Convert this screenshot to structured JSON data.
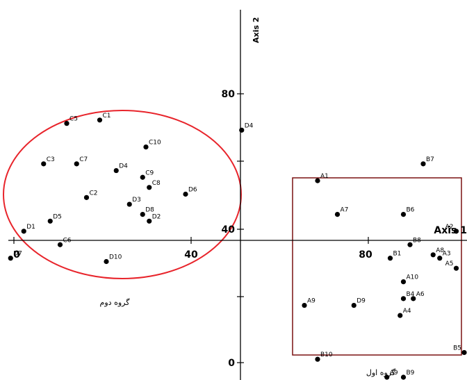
{
  "chart_data": {
    "type": "scatter",
    "title": "",
    "xlabel": "Axis 1",
    "ylabel": "Axis 2",
    "x_ticks": [
      "0",
      "40",
      "80"
    ],
    "y_ticks": [
      "0",
      "40",
      "80"
    ],
    "xlim": [
      -1,
      132
    ],
    "ylim": [
      -4,
      131
    ],
    "grid": false,
    "group_labels": [
      "گروه دوم",
      "گروه اول"
    ],
    "points": [
      {
        "label": "C1",
        "x": 26,
        "y": 72
      },
      {
        "label": "C5",
        "x": 16,
        "y": 71
      },
      {
        "label": "C10",
        "x": 40,
        "y": 64
      },
      {
        "label": "C3",
        "x": 9,
        "y": 59
      },
      {
        "label": "C7",
        "x": 19,
        "y": 59
      },
      {
        "label": "D4",
        "x": 31,
        "y": 57
      },
      {
        "label": "C9",
        "x": 39,
        "y": 55
      },
      {
        "label": "C8",
        "x": 41,
        "y": 52
      },
      {
        "label": "C2",
        "x": 22,
        "y": 49
      },
      {
        "label": "D6",
        "x": 52,
        "y": 50
      },
      {
        "label": "D3",
        "x": 35,
        "y": 47
      },
      {
        "label": "D8",
        "x": 39,
        "y": 44
      },
      {
        "label": "D2",
        "x": 41,
        "y": 42
      },
      {
        "label": "D5",
        "x": 11,
        "y": 42
      },
      {
        "label": "D1",
        "x": 3,
        "y": 39
      },
      {
        "label": "C6",
        "x": 14,
        "y": 35
      },
      {
        "label": "D7",
        "x": -1,
        "y": 31
      },
      {
        "label": "D10",
        "x": 28,
        "y": 30
      },
      {
        "label": "D4",
        "x": 69,
        "y": 69
      },
      {
        "label": "A1",
        "x": 92,
        "y": 54
      },
      {
        "label": "B7",
        "x": 124,
        "y": 59
      },
      {
        "label": "A7",
        "x": 98,
        "y": 44
      },
      {
        "label": "B6",
        "x": 118,
        "y": 44
      },
      {
        "label": "A2",
        "x": 134,
        "y": 39
      },
      {
        "label": "B8",
        "x": 120,
        "y": 35
      },
      {
        "label": "A8",
        "x": 127,
        "y": 32
      },
      {
        "label": "A3",
        "x": 129,
        "y": 31
      },
      {
        "label": "B1",
        "x": 114,
        "y": 31
      },
      {
        "label": "A5",
        "x": 134,
        "y": 28
      },
      {
        "label": "A10",
        "x": 118,
        "y": 24
      },
      {
        "label": "A9",
        "x": 88,
        "y": 17
      },
      {
        "label": "D9",
        "x": 103,
        "y": 17
      },
      {
        "label": "B4",
        "x": 118,
        "y": 19
      },
      {
        "label": "A6",
        "x": 121,
        "y": 19
      },
      {
        "label": "A4",
        "x": 117,
        "y": 14
      },
      {
        "label": "B10",
        "x": 92,
        "y": 1
      },
      {
        "label": "B5",
        "x": 138,
        "y": 3
      },
      {
        "label": "A9",
        "x": 113,
        "y": -6
      },
      {
        "label": "B9",
        "x": 118,
        "y": -9
      }
    ]
  }
}
